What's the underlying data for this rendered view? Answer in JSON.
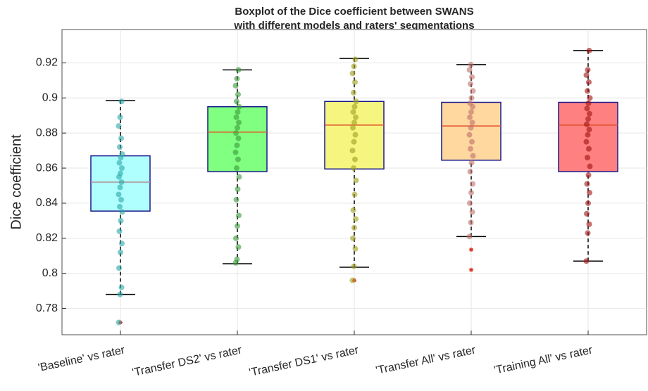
{
  "chart_data": {
    "type": "box",
    "title": [
      "Boxplot of the Dice coefficient between SWANS",
      "with different models and raters' segmentations"
    ],
    "y_label": "Dice coefficient",
    "categories": [
      "'Baseline' vs rater",
      "'Transfer DS2' vs rater",
      "'Transfer DS1' vs rater",
      "'Transfer All' vs rater",
      "'Training All' vs rater"
    ],
    "ylim": [
      0.765,
      0.939
    ],
    "yticks": [
      0.78,
      0.8,
      0.82,
      0.84,
      0.86,
      0.88,
      0.9,
      0.92
    ],
    "grid": true,
    "box_edge_color": "#1a1a8c",
    "outlier_color": "#e03020",
    "boxes": [
      {
        "whisker_low": 0.788,
        "q1": 0.8355,
        "median": 0.852,
        "q3": 0.867,
        "whisker_high": 0.8985,
        "outliers": [
          0.772
        ],
        "fill": "#b0ffff",
        "median_color": "#b09090",
        "point_color": "#2aa6a6",
        "points": [
          0.772,
          0.788,
          0.792,
          0.803,
          0.812,
          0.817,
          0.824,
          0.83,
          0.835,
          0.838,
          0.842,
          0.845,
          0.849,
          0.852,
          0.855,
          0.857,
          0.86,
          0.863,
          0.866,
          0.868,
          0.872,
          0.877,
          0.884,
          0.889,
          0.898
        ]
      },
      {
        "whisker_low": 0.8055,
        "q1": 0.858,
        "median": 0.8805,
        "q3": 0.895,
        "whisker_high": 0.916,
        "outliers": [],
        "fill": "#80ff80",
        "median_color": "#e0602a",
        "point_color": "#3a9a3a",
        "points": [
          0.806,
          0.808,
          0.815,
          0.82,
          0.827,
          0.833,
          0.842,
          0.848,
          0.855,
          0.86,
          0.865,
          0.869,
          0.873,
          0.877,
          0.88,
          0.883,
          0.886,
          0.889,
          0.892,
          0.895,
          0.898,
          0.902,
          0.907,
          0.911,
          0.916
        ]
      },
      {
        "whisker_low": 0.8035,
        "q1": 0.8595,
        "median": 0.8845,
        "q3": 0.898,
        "whisker_high": 0.9225,
        "outliers": [
          0.796
        ],
        "fill": "#f5f580",
        "median_color": "#e0502a",
        "point_color": "#9e9e1e",
        "points": [
          0.796,
          0.804,
          0.814,
          0.82,
          0.826,
          0.831,
          0.836,
          0.845,
          0.853,
          0.86,
          0.865,
          0.87,
          0.875,
          0.879,
          0.883,
          0.886,
          0.889,
          0.892,
          0.895,
          0.898,
          0.903,
          0.909,
          0.914,
          0.918,
          0.922
        ]
      },
      {
        "whisker_low": 0.821,
        "q1": 0.8645,
        "median": 0.884,
        "q3": 0.8975,
        "whisker_high": 0.919,
        "outliers": [
          0.8135,
          0.802
        ],
        "fill": "#ffd8a0",
        "median_color": "#e0502a",
        "point_color": "#c0706a",
        "points": [
          0.821,
          0.829,
          0.835,
          0.84,
          0.846,
          0.851,
          0.858,
          0.863,
          0.867,
          0.871,
          0.875,
          0.879,
          0.883,
          0.886,
          0.889,
          0.892,
          0.895,
          0.897,
          0.9,
          0.904,
          0.908,
          0.912,
          0.916,
          0.919
        ]
      },
      {
        "whisker_low": 0.807,
        "q1": 0.858,
        "median": 0.8845,
        "q3": 0.8975,
        "whisker_high": 0.927,
        "outliers": [],
        "fill": "#ff8080",
        "median_color": "#e0502a",
        "point_color": "#a01010",
        "points": [
          0.807,
          0.823,
          0.828,
          0.834,
          0.84,
          0.846,
          0.851,
          0.856,
          0.861,
          0.866,
          0.871,
          0.875,
          0.879,
          0.882,
          0.885,
          0.888,
          0.891,
          0.894,
          0.897,
          0.9,
          0.904,
          0.909,
          0.913,
          0.916,
          0.927
        ]
      }
    ]
  }
}
